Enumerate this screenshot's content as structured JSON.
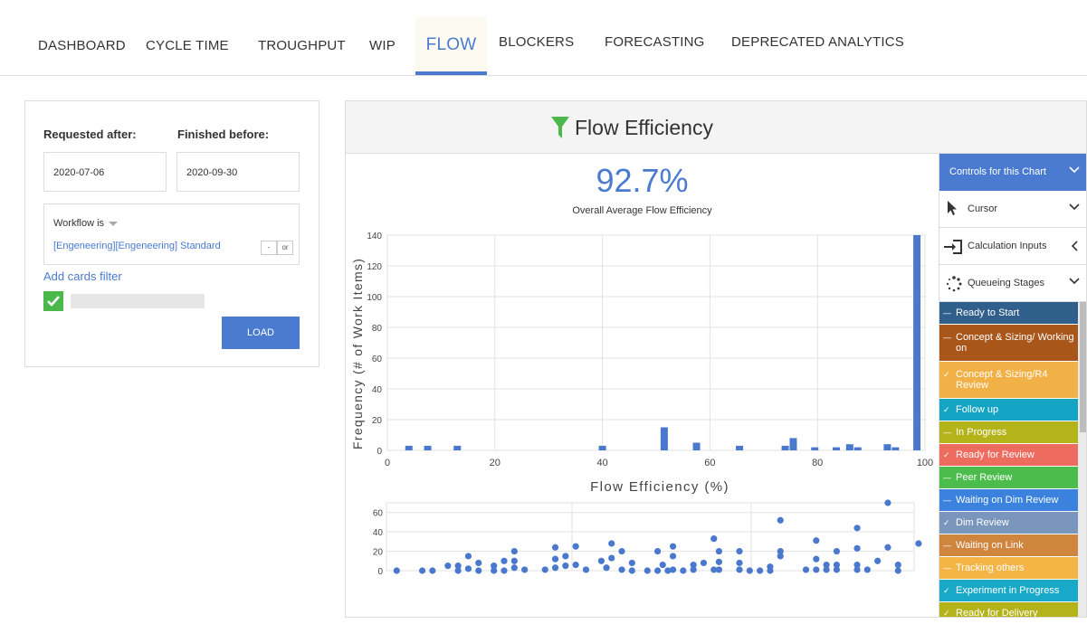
{
  "nav": {
    "tabs": [
      {
        "label": "DASHBOARD"
      },
      {
        "label": "CYCLE TIME"
      },
      {
        "label": "TROUGHPUT"
      },
      {
        "label": "WIP"
      },
      {
        "label": "FLOW"
      },
      {
        "label": "BLOCKERS"
      },
      {
        "label": "FORECASTING"
      },
      {
        "label": "DEPRECATED ANALYTICS"
      }
    ],
    "active": "FLOW"
  },
  "filter": {
    "requested_after_label": "Requested after:",
    "requested_after_value": "2020-07-06",
    "finished_before_label": "Finished before:",
    "finished_before_value": "2020-09-30",
    "workflow_label": "Workflow is",
    "workflow_value": "[Engeneering][Engeneering] Standard",
    "minus_btn": "-",
    "or_btn": "or",
    "add_filter": "Add cards filter",
    "load_btn": "LOAD"
  },
  "chart": {
    "title": "Flow Efficiency",
    "overall_value": "92.7%",
    "overall_label": "Overall Average Flow Efficiency"
  },
  "controls": {
    "header": "Controls for this Chart",
    "cursor": "Cursor",
    "calc_inputs": "Calculation Inputs",
    "queueing": "Queueing Stages",
    "stages": [
      {
        "label": "Ready to Start",
        "color": "#2f5f8a",
        "mark": "—"
      },
      {
        "label": "Concept & Sizing/ Working on",
        "color": "#a9561b",
        "mark": "—"
      },
      {
        "label": "Concept & Sizing/R4 Review",
        "color": "#f2b147",
        "mark": "✓"
      },
      {
        "label": "Follow up",
        "color": "#16a4c4",
        "mark": "✓"
      },
      {
        "label": "In Progress",
        "color": "#b5b31a",
        "mark": "—"
      },
      {
        "label": "Ready for Review",
        "color": "#ee6b5f",
        "mark": "✓"
      },
      {
        "label": "Peer Review",
        "color": "#4cbd4c",
        "mark": "—"
      },
      {
        "label": "Waiting on Dim Review",
        "color": "#3a82dd",
        "mark": "—"
      },
      {
        "label": "Dim Review",
        "color": "#7a96bc",
        "mark": "✓"
      },
      {
        "label": "Waiting on Link",
        "color": "#d0853e",
        "mark": "—"
      },
      {
        "label": "Tracking others",
        "color": "#f4b546",
        "mark": "—"
      },
      {
        "label": "Experiment in Progress",
        "color": "#18a8c8",
        "mark": "✓"
      },
      {
        "label": "Ready for Delivery",
        "color": "#b4b41a",
        "mark": "✓"
      }
    ]
  },
  "chart_data": [
    {
      "type": "bar",
      "xlabel": "Flow Efficiency (%)",
      "ylabel": "Frequency (# of Work Items)",
      "xlim": [
        0,
        100
      ],
      "ylim": [
        0,
        140
      ],
      "xticks": [
        0,
        20,
        40,
        60,
        80,
        100
      ],
      "yticks": [
        0,
        20,
        40,
        60,
        80,
        100,
        120,
        140
      ],
      "grid": true,
      "color": "#4a78cc",
      "bins": [
        {
          "x": 4,
          "value": 3
        },
        {
          "x": 7.5,
          "value": 3
        },
        {
          "x": 13,
          "value": 3
        },
        {
          "x": 40,
          "value": 3
        },
        {
          "x": 51.5,
          "value": 15
        },
        {
          "x": 57.5,
          "value": 5
        },
        {
          "x": 65.5,
          "value": 3
        },
        {
          "x": 74,
          "value": 3
        },
        {
          "x": 75.5,
          "value": 8
        },
        {
          "x": 79.5,
          "value": 2
        },
        {
          "x": 83.5,
          "value": 2
        },
        {
          "x": 86,
          "value": 4
        },
        {
          "x": 87.5,
          "value": 2
        },
        {
          "x": 93,
          "value": 4
        },
        {
          "x": 94.5,
          "value": 2
        },
        {
          "x": 98.5,
          "value": 140
        }
      ]
    },
    {
      "type": "scatter",
      "yticks": [
        0,
        20,
        40,
        60
      ],
      "ylim": [
        0,
        70
      ],
      "xlim": [
        0,
        100
      ],
      "grid": true,
      "color": "#4a78cc",
      "points": [
        [
          2,
          0
        ],
        [
          7,
          0
        ],
        [
          9,
          0
        ],
        [
          12,
          5
        ],
        [
          14,
          5
        ],
        [
          14,
          0
        ],
        [
          16,
          15
        ],
        [
          16,
          2
        ],
        [
          18,
          8
        ],
        [
          18,
          0
        ],
        [
          21,
          5
        ],
        [
          21,
          0
        ],
        [
          23,
          10
        ],
        [
          23,
          0
        ],
        [
          25,
          20
        ],
        [
          25,
          10
        ],
        [
          25,
          3
        ],
        [
          27,
          1
        ],
        [
          31,
          1
        ],
        [
          33,
          24
        ],
        [
          33,
          12
        ],
        [
          33,
          3
        ],
        [
          35,
          15
        ],
        [
          35,
          5
        ],
        [
          37,
          25
        ],
        [
          37,
          6
        ],
        [
          39,
          1
        ],
        [
          42,
          10
        ],
        [
          43,
          3
        ],
        [
          44,
          28
        ],
        [
          44,
          13
        ],
        [
          46,
          20
        ],
        [
          46,
          1
        ],
        [
          48,
          8
        ],
        [
          48,
          0
        ],
        [
          51,
          0
        ],
        [
          53,
          0
        ],
        [
          53,
          20
        ],
        [
          54,
          6
        ],
        [
          55,
          0
        ],
        [
          56,
          25
        ],
        [
          56,
          15
        ],
        [
          56,
          1
        ],
        [
          58,
          0
        ],
        [
          60,
          6
        ],
        [
          60,
          1
        ],
        [
          62,
          8
        ],
        [
          64,
          1
        ],
        [
          64,
          33
        ],
        [
          65,
          20
        ],
        [
          65,
          9
        ],
        [
          65,
          1
        ],
        [
          69,
          20
        ],
        [
          69,
          8
        ],
        [
          69,
          1
        ],
        [
          71,
          0
        ],
        [
          73,
          0
        ],
        [
          75,
          0
        ],
        [
          75,
          4
        ],
        [
          77,
          52
        ],
        [
          77,
          20
        ],
        [
          77,
          15
        ],
        [
          82,
          1
        ],
        [
          84,
          31
        ],
        [
          84,
          12
        ],
        [
          84,
          1
        ],
        [
          86,
          1
        ],
        [
          86,
          6
        ],
        [
          88,
          20
        ],
        [
          88,
          6
        ],
        [
          88,
          1
        ],
        [
          92,
          44
        ],
        [
          92,
          23
        ],
        [
          92,
          6
        ],
        [
          92,
          1
        ],
        [
          94,
          1
        ],
        [
          96,
          10
        ],
        [
          98,
          70
        ],
        [
          98,
          24
        ],
        [
          100,
          6
        ],
        [
          100,
          0
        ],
        [
          104,
          28
        ]
      ]
    }
  ]
}
